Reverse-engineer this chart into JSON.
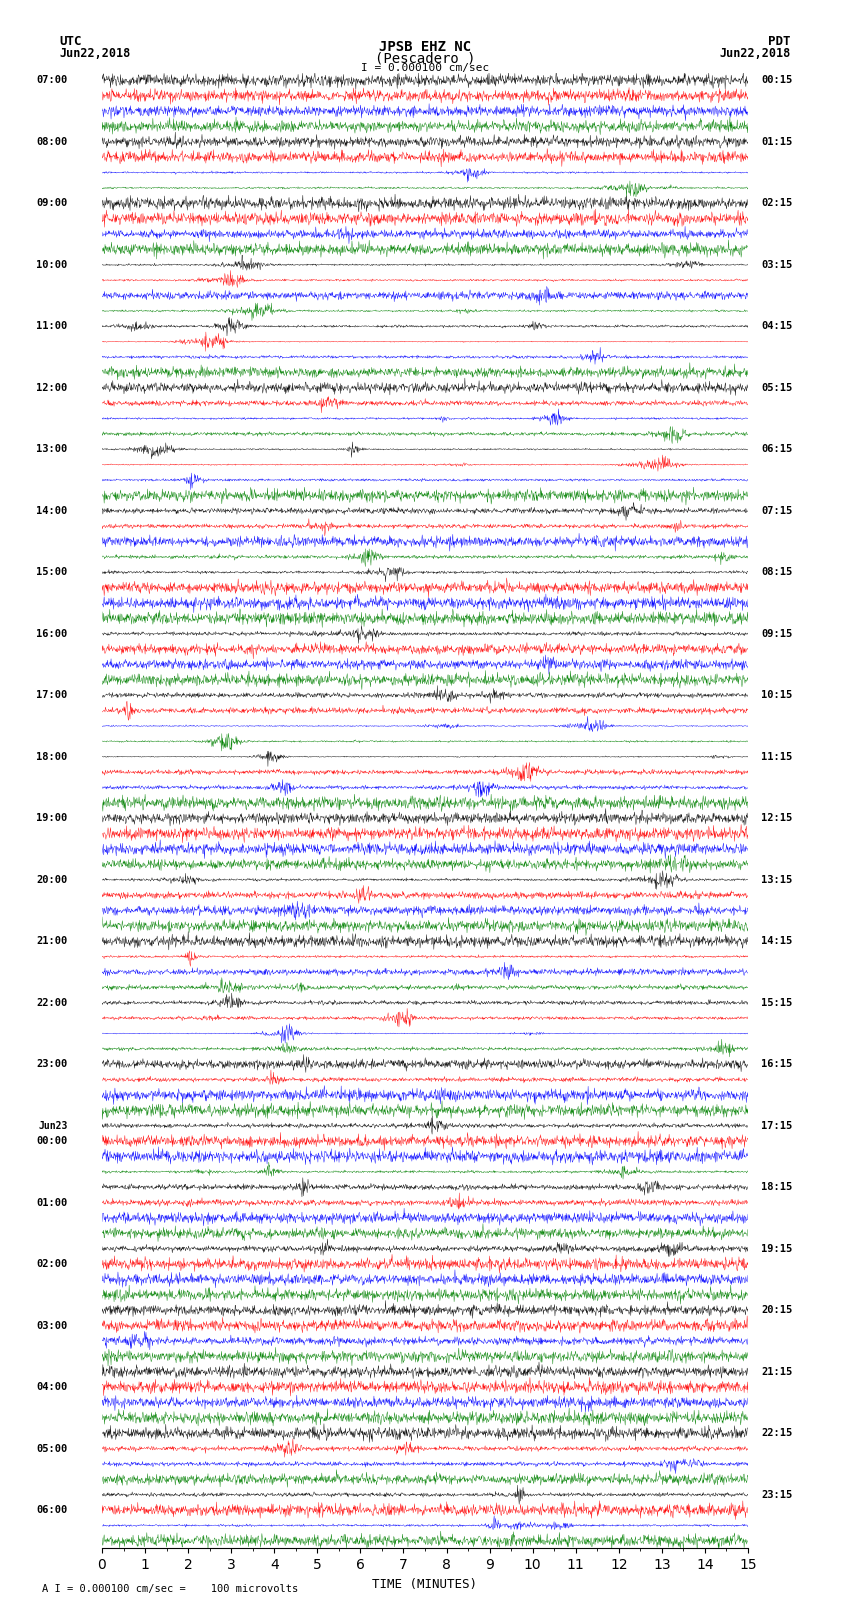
{
  "title_line1": "JPSB EHZ NC",
  "title_line2": "(Pescadero )",
  "scale_label": "I = 0.000100 cm/sec",
  "utc_label": "UTC",
  "utc_date": "Jun22,2018",
  "pdt_label": "PDT",
  "pdt_date": "Jun22,2018",
  "xlabel": "TIME (MINUTES)",
  "footer": "A I = 0.000100 cm/sec =    100 microvolts",
  "trace_colors": [
    "black",
    "red",
    "blue",
    "green"
  ],
  "bg_color": "white",
  "num_rows": 96,
  "minutes_per_row": 15,
  "left_times_utc": [
    "07:00",
    "",
    "",
    "",
    "08:00",
    "",
    "",
    "",
    "09:00",
    "",
    "",
    "",
    "10:00",
    "",
    "",
    "",
    "11:00",
    "",
    "",
    "",
    "12:00",
    "",
    "",
    "",
    "13:00",
    "",
    "",
    "",
    "14:00",
    "",
    "",
    "",
    "15:00",
    "",
    "",
    "",
    "16:00",
    "",
    "",
    "",
    "17:00",
    "",
    "",
    "",
    "18:00",
    "",
    "",
    "",
    "19:00",
    "",
    "",
    "",
    "20:00",
    "",
    "",
    "",
    "21:00",
    "",
    "",
    "",
    "22:00",
    "",
    "",
    "",
    "23:00",
    "",
    "",
    "",
    "Jun23",
    "00:00",
    "",
    "",
    "",
    "01:00",
    "",
    "",
    "",
    "02:00",
    "",
    "",
    "",
    "03:00",
    "",
    "",
    "",
    "04:00",
    "",
    "",
    "",
    "05:00",
    "",
    "",
    "",
    "06:00",
    ""
  ],
  "right_times_pdt": [
    "00:15",
    "",
    "",
    "",
    "01:15",
    "",
    "",
    "",
    "02:15",
    "",
    "",
    "",
    "03:15",
    "",
    "",
    "",
    "04:15",
    "",
    "",
    "",
    "05:15",
    "",
    "",
    "",
    "06:15",
    "",
    "",
    "",
    "07:15",
    "",
    "",
    "",
    "08:15",
    "",
    "",
    "",
    "09:15",
    "",
    "",
    "",
    "10:15",
    "",
    "",
    "",
    "11:15",
    "",
    "",
    "",
    "12:15",
    "",
    "",
    "",
    "13:15",
    "",
    "",
    "",
    "14:15",
    "",
    "",
    "",
    "15:15",
    "",
    "",
    "",
    "16:15",
    "",
    "",
    "",
    "17:15",
    "",
    "",
    "",
    "18:15",
    "",
    "",
    "",
    "19:15",
    "",
    "",
    "",
    "20:15",
    "",
    "",
    "",
    "21:15",
    "",
    "",
    "",
    "22:15",
    "",
    "",
    "",
    "23:15",
    ""
  ]
}
